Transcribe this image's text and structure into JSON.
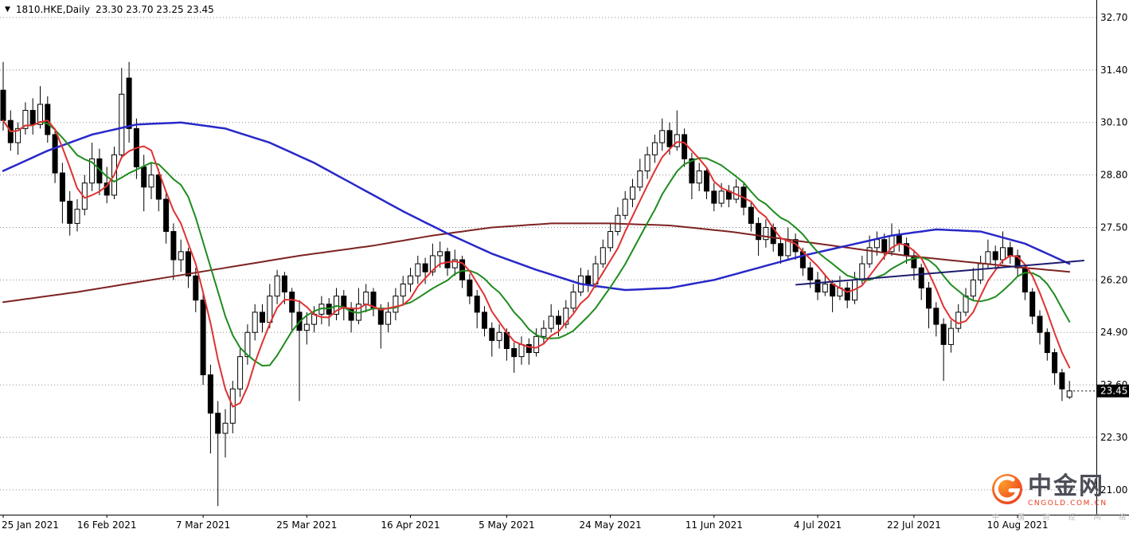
{
  "header": {
    "dropdown_icon": "▼",
    "symbol_period": "1810.HKE,Daily",
    "ohlc": "23.30 23.70 23.25 23.45"
  },
  "price_axis": {
    "labels": [
      "32.70",
      "31.40",
      "30.10",
      "28.80",
      "27.50",
      "26.20",
      "24.90",
      "23.60",
      "22.30",
      "21.00"
    ],
    "top_value": 32.7,
    "step": 1.3,
    "current_price": "23.45"
  },
  "watermark": {
    "brand": "中金网",
    "domain": "CNGOLD.COM.CN",
    "tagline": "中 国 财 经 网 络 媒 体",
    "logo_color_outer": "#e8391d",
    "logo_color_inner": "#ff9a2a"
  },
  "colors": {
    "background": "#ffffff",
    "grid": "#8a8a8a",
    "candle_up_fill": "#ffffff",
    "candle_down_fill": "#000000",
    "candle_outline": "#000000",
    "axis": "#000000",
    "price_tag_bg": "#000000",
    "price_tag_text": "#ffffff"
  },
  "chart_data": {
    "type": "candlestick",
    "symbol": "1810.HKE",
    "timeframe": "Daily",
    "last_ohlc": {
      "open": 23.3,
      "high": 23.7,
      "low": 23.25,
      "close": 23.45
    },
    "ylim": [
      20.3,
      33.0
    ],
    "grid": "horizontal-dotted",
    "legend": "none",
    "x_labels": [
      {
        "index": 0,
        "text": "25 Jan 2021"
      },
      {
        "index": 14,
        "text": "16 Feb 2021"
      },
      {
        "index": 27,
        "text": "7 Mar 2021"
      },
      {
        "index": 41,
        "text": "25 Mar 2021"
      },
      {
        "index": 55,
        "text": "16 Apr 2021"
      },
      {
        "index": 68,
        "text": "5 May 2021"
      },
      {
        "index": 82,
        "text": "24 May 2021"
      },
      {
        "index": 96,
        "text": "11 Jun 2021"
      },
      {
        "index": 110,
        "text": "4 Jul 2021"
      },
      {
        "index": 123,
        "text": "22 Jul 2021"
      },
      {
        "index": 137,
        "text": "10 Aug 2021"
      }
    ],
    "candles": [
      [
        30.9,
        31.6,
        29.9,
        30.15
      ],
      [
        30.15,
        30.4,
        29.4,
        29.6
      ],
      [
        29.6,
        30.1,
        29.3,
        29.95
      ],
      [
        29.95,
        30.6,
        29.8,
        30.4
      ],
      [
        30.4,
        30.7,
        29.8,
        30.05
      ],
      [
        30.05,
        31.0,
        29.95,
        30.55
      ],
      [
        30.55,
        30.75,
        29.6,
        29.8
      ],
      [
        29.8,
        29.95,
        28.6,
        28.85
      ],
      [
        28.85,
        29.1,
        27.6,
        28.15
      ],
      [
        28.15,
        28.4,
        27.3,
        27.6
      ],
      [
        27.6,
        28.2,
        27.4,
        27.95
      ],
      [
        27.95,
        28.8,
        27.8,
        28.6
      ],
      [
        28.6,
        29.6,
        28.4,
        29.2
      ],
      [
        29.2,
        29.45,
        28.3,
        28.6
      ],
      [
        28.6,
        29.0,
        28.1,
        28.3
      ],
      [
        28.3,
        29.5,
        28.2,
        29.3
      ],
      [
        29.3,
        31.45,
        29.2,
        30.8
      ],
      [
        31.2,
        31.6,
        29.6,
        29.95
      ],
      [
        29.95,
        30.2,
        28.7,
        29.0
      ],
      [
        29.0,
        29.3,
        27.9,
        28.5
      ],
      [
        28.5,
        29.1,
        28.2,
        28.8
      ],
      [
        28.8,
        28.95,
        27.9,
        28.2
      ],
      [
        28.2,
        28.35,
        27.1,
        27.4
      ],
      [
        27.4,
        27.6,
        26.2,
        26.7
      ],
      [
        26.7,
        27.2,
        26.4,
        26.9
      ],
      [
        26.9,
        27.0,
        26.0,
        26.3
      ],
      [
        26.3,
        26.5,
        25.4,
        25.7
      ],
      [
        25.7,
        25.9,
        23.6,
        23.85
      ],
      [
        23.85,
        24.1,
        21.9,
        22.9
      ],
      [
        22.9,
        23.2,
        20.6,
        22.4
      ],
      [
        22.4,
        23.0,
        21.8,
        22.65
      ],
      [
        22.65,
        23.7,
        22.4,
        23.5
      ],
      [
        23.5,
        24.5,
        23.3,
        24.3
      ],
      [
        24.3,
        25.1,
        24.1,
        24.9
      ],
      [
        24.9,
        25.6,
        24.7,
        25.4
      ],
      [
        25.4,
        25.6,
        24.9,
        25.15
      ],
      [
        25.15,
        26.1,
        25.0,
        25.8
      ],
      [
        25.8,
        26.45,
        25.6,
        26.3
      ],
      [
        26.3,
        26.4,
        25.6,
        25.9
      ],
      [
        25.9,
        26.0,
        24.9,
        25.4
      ],
      [
        25.4,
        25.7,
        23.2,
        24.95
      ],
      [
        24.95,
        25.4,
        24.6,
        25.1
      ],
      [
        25.1,
        25.55,
        24.9,
        25.35
      ],
      [
        25.35,
        25.8,
        25.1,
        25.6
      ],
      [
        25.6,
        25.75,
        25.05,
        25.35
      ],
      [
        25.35,
        26.0,
        25.2,
        25.8
      ],
      [
        25.8,
        25.95,
        25.2,
        25.5
      ],
      [
        25.5,
        25.65,
        24.9,
        25.2
      ],
      [
        25.2,
        26.0,
        25.1,
        25.6
      ],
      [
        25.6,
        26.1,
        25.4,
        25.9
      ],
      [
        25.9,
        26.0,
        25.3,
        25.5
      ],
      [
        25.5,
        25.6,
        24.5,
        25.1
      ],
      [
        25.1,
        25.65,
        24.9,
        25.4
      ],
      [
        25.4,
        26.0,
        25.2,
        25.8
      ],
      [
        25.8,
        26.3,
        25.6,
        26.1
      ],
      [
        26.1,
        26.5,
        25.9,
        26.3
      ],
      [
        26.3,
        26.8,
        26.1,
        26.6
      ],
      [
        26.6,
        26.75,
        26.1,
        26.4
      ],
      [
        26.4,
        27.1,
        26.3,
        26.8
      ],
      [
        26.8,
        27.15,
        26.5,
        26.9
      ],
      [
        26.9,
        27.0,
        26.3,
        26.5
      ],
      [
        26.5,
        26.95,
        26.3,
        26.7
      ],
      [
        26.7,
        26.8,
        26.0,
        26.2
      ],
      [
        26.2,
        26.35,
        25.6,
        25.8
      ],
      [
        25.8,
        25.95,
        25.0,
        25.4
      ],
      [
        25.4,
        25.55,
        24.8,
        25.0
      ],
      [
        25.0,
        25.15,
        24.3,
        24.7
      ],
      [
        24.7,
        25.1,
        24.5,
        24.9
      ],
      [
        24.9,
        25.0,
        24.2,
        24.5
      ],
      [
        24.5,
        24.65,
        23.9,
        24.3
      ],
      [
        24.3,
        24.8,
        24.1,
        24.6
      ],
      [
        24.6,
        24.75,
        24.1,
        24.4
      ],
      [
        24.4,
        25.0,
        24.3,
        24.8
      ],
      [
        24.8,
        25.2,
        24.6,
        25.0
      ],
      [
        25.0,
        25.6,
        24.9,
        25.3
      ],
      [
        25.3,
        25.45,
        24.8,
        25.1
      ],
      [
        25.1,
        25.7,
        25.0,
        25.5
      ],
      [
        25.5,
        26.1,
        25.4,
        25.9
      ],
      [
        25.9,
        26.5,
        25.8,
        26.3
      ],
      [
        26.3,
        26.45,
        25.9,
        26.1
      ],
      [
        26.1,
        26.8,
        26.0,
        26.6
      ],
      [
        26.6,
        27.2,
        26.5,
        27.0
      ],
      [
        27.0,
        27.6,
        26.9,
        27.4
      ],
      [
        27.4,
        28.0,
        27.3,
        27.8
      ],
      [
        27.8,
        28.4,
        27.7,
        28.2
      ],
      [
        28.2,
        28.7,
        28.0,
        28.5
      ],
      [
        28.5,
        29.2,
        28.4,
        28.9
      ],
      [
        28.9,
        29.5,
        28.7,
        29.3
      ],
      [
        29.3,
        29.8,
        29.1,
        29.6
      ],
      [
        29.6,
        30.2,
        29.4,
        29.9
      ],
      [
        29.9,
        30.1,
        29.3,
        29.5
      ],
      [
        29.5,
        30.4,
        29.4,
        29.8
      ],
      [
        29.8,
        29.95,
        29.0,
        29.2
      ],
      [
        29.2,
        29.35,
        28.2,
        28.6
      ],
      [
        28.6,
        29.1,
        28.4,
        28.9
      ],
      [
        28.9,
        29.0,
        28.2,
        28.4
      ],
      [
        28.4,
        28.6,
        27.9,
        28.1
      ],
      [
        28.1,
        28.6,
        28.0,
        28.4
      ],
      [
        28.4,
        28.55,
        28.0,
        28.2
      ],
      [
        28.2,
        28.7,
        28.1,
        28.5
      ],
      [
        28.5,
        28.6,
        27.8,
        28.0
      ],
      [
        28.0,
        28.15,
        27.4,
        27.6
      ],
      [
        27.6,
        27.75,
        26.8,
        27.2
      ],
      [
        27.2,
        27.7,
        27.0,
        27.5
      ],
      [
        27.5,
        27.6,
        26.9,
        27.1
      ],
      [
        27.1,
        27.25,
        26.6,
        26.8
      ],
      [
        26.8,
        27.5,
        26.7,
        27.2
      ],
      [
        27.2,
        27.35,
        26.7,
        26.9
      ],
      [
        26.9,
        27.0,
        26.3,
        26.5
      ],
      [
        26.5,
        26.65,
        26.0,
        26.2
      ],
      [
        26.2,
        26.4,
        25.7,
        25.9
      ],
      [
        25.9,
        26.35,
        25.8,
        26.1
      ],
      [
        26.1,
        26.2,
        25.4,
        25.8
      ],
      [
        25.8,
        26.3,
        25.7,
        26.0
      ],
      [
        26.0,
        26.15,
        25.5,
        25.7
      ],
      [
        25.7,
        26.4,
        25.6,
        26.2
      ],
      [
        26.2,
        26.8,
        26.1,
        26.6
      ],
      [
        26.6,
        27.3,
        26.5,
        27.0
      ],
      [
        27.0,
        27.4,
        26.8,
        27.2
      ],
      [
        27.2,
        27.35,
        26.7,
        26.9
      ],
      [
        26.9,
        27.6,
        26.8,
        27.3
      ],
      [
        27.3,
        27.45,
        26.9,
        27.1
      ],
      [
        27.1,
        27.25,
        26.6,
        26.8
      ],
      [
        26.8,
        26.95,
        26.2,
        26.5
      ],
      [
        26.5,
        26.6,
        25.7,
        26.0
      ],
      [
        26.0,
        26.15,
        25.0,
        25.5
      ],
      [
        25.5,
        25.65,
        24.8,
        25.1
      ],
      [
        25.1,
        25.25,
        23.7,
        24.6
      ],
      [
        24.6,
        25.2,
        24.4,
        25.0
      ],
      [
        25.0,
        25.6,
        24.9,
        25.4
      ],
      [
        25.4,
        26.0,
        25.3,
        25.8
      ],
      [
        25.8,
        26.5,
        25.7,
        26.2
      ],
      [
        26.2,
        26.8,
        26.1,
        26.6
      ],
      [
        26.6,
        27.2,
        26.5,
        26.9
      ],
      [
        26.9,
        27.05,
        26.5,
        26.7
      ],
      [
        26.7,
        27.4,
        26.6,
        27.0
      ],
      [
        27.0,
        27.15,
        26.6,
        26.8
      ],
      [
        26.8,
        26.95,
        26.3,
        26.5
      ],
      [
        26.5,
        26.6,
        25.7,
        25.9
      ],
      [
        25.9,
        26.0,
        25.1,
        25.3
      ],
      [
        25.3,
        25.45,
        24.6,
        24.9
      ],
      [
        24.9,
        25.0,
        24.2,
        24.4
      ],
      [
        24.4,
        24.5,
        23.6,
        23.9
      ],
      [
        23.9,
        24.0,
        23.2,
        23.5
      ],
      [
        23.3,
        23.7,
        23.25,
        23.45
      ]
    ],
    "moving_averages": [
      {
        "name": "ma-very-slow",
        "color": "#7e2222",
        "width": 2,
        "anchors": [
          [
            0,
            25.65
          ],
          [
            10,
            25.9
          ],
          [
            20,
            26.2
          ],
          [
            30,
            26.5
          ],
          [
            40,
            26.8
          ],
          [
            50,
            27.05
          ],
          [
            58,
            27.3
          ],
          [
            66,
            27.5
          ],
          [
            74,
            27.6
          ],
          [
            82,
            27.6
          ],
          [
            90,
            27.55
          ],
          [
            98,
            27.4
          ],
          [
            106,
            27.2
          ],
          [
            114,
            27.0
          ],
          [
            122,
            26.8
          ],
          [
            130,
            26.65
          ],
          [
            138,
            26.5
          ],
          [
            144,
            26.4
          ]
        ]
      },
      {
        "name": "ma-slow",
        "color": "#2828c8",
        "width": 2.5,
        "anchors": [
          [
            0,
            28.9
          ],
          [
            6,
            29.4
          ],
          [
            12,
            29.8
          ],
          [
            18,
            30.05
          ],
          [
            24,
            30.1
          ],
          [
            30,
            29.95
          ],
          [
            36,
            29.6
          ],
          [
            42,
            29.1
          ],
          [
            48,
            28.5
          ],
          [
            54,
            27.9
          ],
          [
            60,
            27.35
          ],
          [
            66,
            26.85
          ],
          [
            72,
            26.45
          ],
          [
            78,
            26.1
          ],
          [
            84,
            25.95
          ],
          [
            90,
            26.0
          ],
          [
            96,
            26.2
          ],
          [
            102,
            26.5
          ],
          [
            108,
            26.8
          ],
          [
            114,
            27.05
          ],
          [
            120,
            27.3
          ],
          [
            126,
            27.45
          ],
          [
            132,
            27.4
          ],
          [
            138,
            27.1
          ],
          [
            144,
            26.6
          ]
        ]
      },
      {
        "name": "ma-medium",
        "color": "#1f8c1f",
        "width": 2,
        "window": 10
      },
      {
        "name": "ma-fast",
        "color": "#e03232",
        "width": 2,
        "window": 5
      }
    ],
    "trendline": {
      "from_index": 107,
      "from_value": 26.08,
      "to_index": 146,
      "to_value": 26.68,
      "color": "#1c1c6e"
    }
  }
}
